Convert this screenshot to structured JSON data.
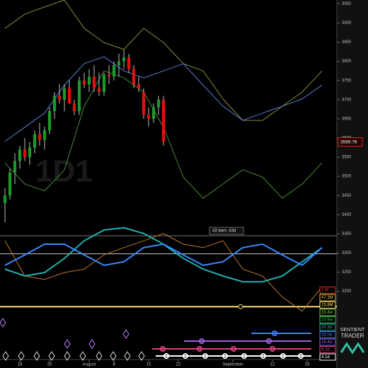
{
  "chart_data": {
    "type": "candlestick",
    "watermark": "1D1",
    "annotation": "43 bars: 43d",
    "last_price": 3589.78,
    "logo": [
      "SENTIENT",
      "TRADER"
    ],
    "xlim": [
      -1,
      67
    ],
    "ylim": [
      3000,
      3960
    ],
    "yticks": [
      3200,
      3250,
      3300,
      3350,
      3400,
      3450,
      3500,
      3550,
      3600,
      3650,
      3700,
      3750,
      3800,
      3850,
      3900,
      3950
    ],
    "xticks": [
      {
        "value": 3,
        "label": "18"
      },
      {
        "value": 9,
        "label": "25"
      },
      {
        "value": 17,
        "label": "August"
      },
      {
        "value": 22,
        "label": "8"
      },
      {
        "value": 29,
        "label": "15"
      },
      {
        "value": 35,
        "label": "22"
      },
      {
        "value": 46,
        "label": "September"
      },
      {
        "value": 54,
        "label": "12"
      },
      {
        "value": 61,
        "label": "19"
      }
    ],
    "up_color": "#1a9a2a",
    "down_color": "#e01010",
    "candles": {
      "open": [
        3430,
        3450,
        3510,
        3540,
        3570,
        3550,
        3575,
        3610,
        3595,
        3620,
        3670,
        3710,
        3700,
        3730,
        3690,
        3670,
        3750,
        3740,
        3760,
        3730,
        3720,
        3765,
        3760,
        3790,
        3800,
        3810,
        3780,
        3740,
        3720,
        3660,
        3650,
        3680,
        3700
      ],
      "high": [
        3470,
        3520,
        3560,
        3580,
        3600,
        3590,
        3620,
        3640,
        3630,
        3680,
        3720,
        3740,
        3740,
        3750,
        3700,
        3760,
        3770,
        3780,
        3790,
        3770,
        3770,
        3790,
        3800,
        3820,
        3830,
        3820,
        3790,
        3760,
        3730,
        3680,
        3690,
        3710,
        3710
      ],
      "low": [
        3380,
        3440,
        3480,
        3520,
        3540,
        3530,
        3560,
        3580,
        3570,
        3610,
        3650,
        3690,
        3670,
        3690,
        3660,
        3660,
        3730,
        3720,
        3720,
        3710,
        3710,
        3740,
        3750,
        3760,
        3780,
        3770,
        3730,
        3720,
        3650,
        3630,
        3640,
        3660,
        3580
      ],
      "close": [
        3450,
        3510,
        3540,
        3570,
        3550,
        3575,
        3610,
        3595,
        3620,
        3670,
        3710,
        3700,
        3730,
        3690,
        3670,
        3750,
        3740,
        3760,
        3730,
        3720,
        3765,
        3760,
        3790,
        3800,
        3810,
        3780,
        3740,
        3730,
        3660,
        3650,
        3680,
        3700,
        3590
      ]
    },
    "line_x": [
      0,
      4,
      8,
      12,
      16,
      20,
      24,
      28,
      32,
      36,
      40,
      44,
      48,
      52,
      56,
      60,
      64
    ],
    "series": [
      {
        "color": "#8a8a3a",
        "values": [
          3886,
          3923,
          3942,
          3960,
          3886,
          3849,
          3831,
          3886,
          3849,
          3794,
          3775,
          3702,
          3646,
          3646,
          3683,
          3720,
          3775
        ]
      },
      {
        "color": "#5b7fd6",
        "values": [
          3591,
          3628,
          3665,
          3738,
          3794,
          3812,
          3775,
          3757,
          3775,
          3794,
          3738,
          3683,
          3646,
          3665,
          3683,
          3702,
          3738
        ]
      },
      {
        "color": "#4a8a3a",
        "values": [
          3535,
          3480,
          3462,
          3517,
          3683,
          3775,
          3757,
          3720,
          3628,
          3498,
          3443,
          3480,
          3517,
          3498,
          3443,
          3480,
          3535
        ]
      },
      {
        "color": "#c07a2a",
        "values": [
          3332,
          3240,
          3231,
          3249,
          3258,
          3295,
          3314,
          3332,
          3351,
          3323,
          3314,
          3332,
          3258,
          3240,
          3185,
          3148,
          3212
        ]
      },
      {
        "color": "#20b0b0",
        "values": [
          3258,
          3240,
          3249,
          3286,
          3332,
          3360,
          3366,
          3351,
          3323,
          3286,
          3258,
          3240,
          3225,
          3225,
          3240,
          3277,
          3314
        ]
      },
      {
        "color": "#3a8aff",
        "values": [
          3268,
          3295,
          3323,
          3323,
          3295,
          3268,
          3277,
          3314,
          3323,
          3295,
          3268,
          3277,
          3314,
          3323,
          3295,
          3268,
          3314
        ]
      }
    ],
    "hlines": [
      {
        "value": 3160,
        "color": "#ffe070"
      },
      {
        "value": 3298,
        "color": "#cccccc"
      },
      {
        "value": 3345,
        "color": "#777777"
      }
    ],
    "cycle_labels": [
      {
        "label": "7.9t",
        "color": "#e03030"
      },
      {
        "label": "47.3M",
        "color": "#e0c040"
      },
      {
        "label": "15.8M",
        "color": "#ffe070"
      },
      {
        "label": "33.4w",
        "color": "#80d040"
      },
      {
        "label": "10.9w",
        "color": "#30c060"
      },
      {
        "label": "20.3d",
        "color": "#20b0b0"
      },
      {
        "label": "33.0d",
        "color": "#4080ff"
      },
      {
        "label": "16.4d",
        "color": "#a060e0"
      },
      {
        "label": "8.2d",
        "color": "#e04080"
      },
      {
        "label": "4.1d",
        "color": "#ffffff"
      }
    ]
  }
}
